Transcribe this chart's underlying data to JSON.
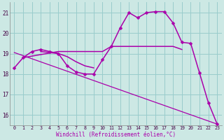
{
  "background_color": "#cce8e4",
  "plot_bg_color": "#cce8e4",
  "line_color": "#aa00aa",
  "grid_color": "#99cccc",
  "xlabel": "Windchill (Refroidissement éolien,°C)",
  "ylim": [
    15.5,
    21.5
  ],
  "xlim": [
    -0.5,
    23.5
  ],
  "yticks": [
    16,
    17,
    18,
    19,
    20,
    21
  ],
  "xticks": [
    0,
    1,
    2,
    3,
    4,
    5,
    6,
    7,
    8,
    9,
    10,
    11,
    12,
    13,
    14,
    15,
    16,
    17,
    18,
    19,
    20,
    21,
    22,
    23
  ],
  "main_line": {
    "x": [
      0,
      1,
      2,
      3,
      4,
      5,
      6,
      7,
      8,
      9,
      10,
      11,
      12,
      13,
      14,
      15,
      16,
      17,
      18,
      19,
      20,
      21,
      22,
      23
    ],
    "y": [
      18.3,
      18.8,
      19.1,
      19.2,
      19.1,
      19.0,
      18.4,
      18.1,
      18.0,
      18.0,
      18.7,
      19.35,
      20.25,
      21.0,
      20.75,
      21.0,
      21.05,
      21.05,
      20.5,
      19.55,
      19.5,
      18.05,
      16.6,
      15.55
    ]
  },
  "flat_line1": {
    "x": [
      1,
      5,
      10,
      11,
      18,
      19
    ],
    "y": [
      18.8,
      19.1,
      19.1,
      19.35,
      19.35,
      19.2
    ]
  },
  "flat_line2": {
    "x": [
      3,
      4,
      5,
      6,
      7,
      8,
      9
    ],
    "y": [
      19.1,
      19.05,
      19.0,
      18.85,
      18.6,
      18.4,
      18.3
    ]
  },
  "diag_line": {
    "x": [
      0,
      23
    ],
    "y": [
      19.05,
      15.55
    ]
  }
}
